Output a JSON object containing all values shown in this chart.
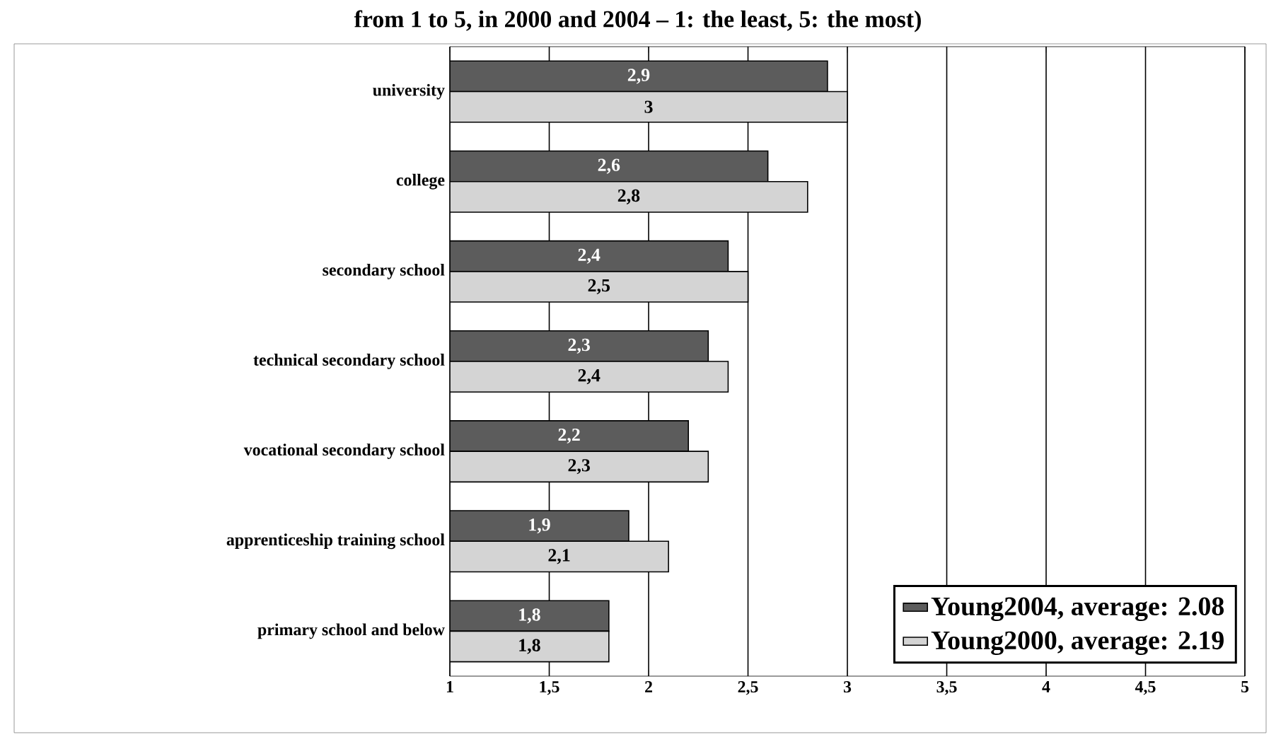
{
  "chart_data": {
    "type": "bar",
    "orientation": "horizontal",
    "title": "from 1 to 5, in 2000 and 2004 – 1: the least, 5: the most)",
    "categories": [
      "university",
      "college",
      "secondary school",
      "technical secondary school",
      "vocational secondary school",
      "apprenticeship training school",
      "primary school and below"
    ],
    "series": [
      {
        "name": "Young2004, average: 2.08",
        "color": "#5c5c5c",
        "values": [
          2.9,
          2.6,
          2.4,
          2.3,
          2.2,
          1.9,
          1.8
        ],
        "value_labels": [
          "2,9",
          "2,6",
          "2,4",
          "2,3",
          "2,2",
          "1,9",
          "1,8"
        ]
      },
      {
        "name": "Young2000, average: 2.19",
        "color": "#d4d4d4",
        "values": [
          3,
          2.8,
          2.5,
          2.4,
          2.3,
          2.1,
          1.8
        ],
        "value_labels": [
          "3",
          "2,8",
          "2,5",
          "2,4",
          "2,3",
          "2,1",
          "1,8"
        ]
      }
    ],
    "xlim": [
      1,
      5
    ],
    "xticks": [
      1,
      {
        "value": 1.5,
        "label": "1,5"
      },
      2,
      {
        "value": 2.5,
        "label": "2,5"
      },
      3,
      {
        "value": 3.5,
        "label": "3,5"
      },
      4,
      {
        "value": 4.5,
        "label": "4,5"
      },
      5
    ],
    "grid": "x",
    "legend": "bottom right"
  }
}
